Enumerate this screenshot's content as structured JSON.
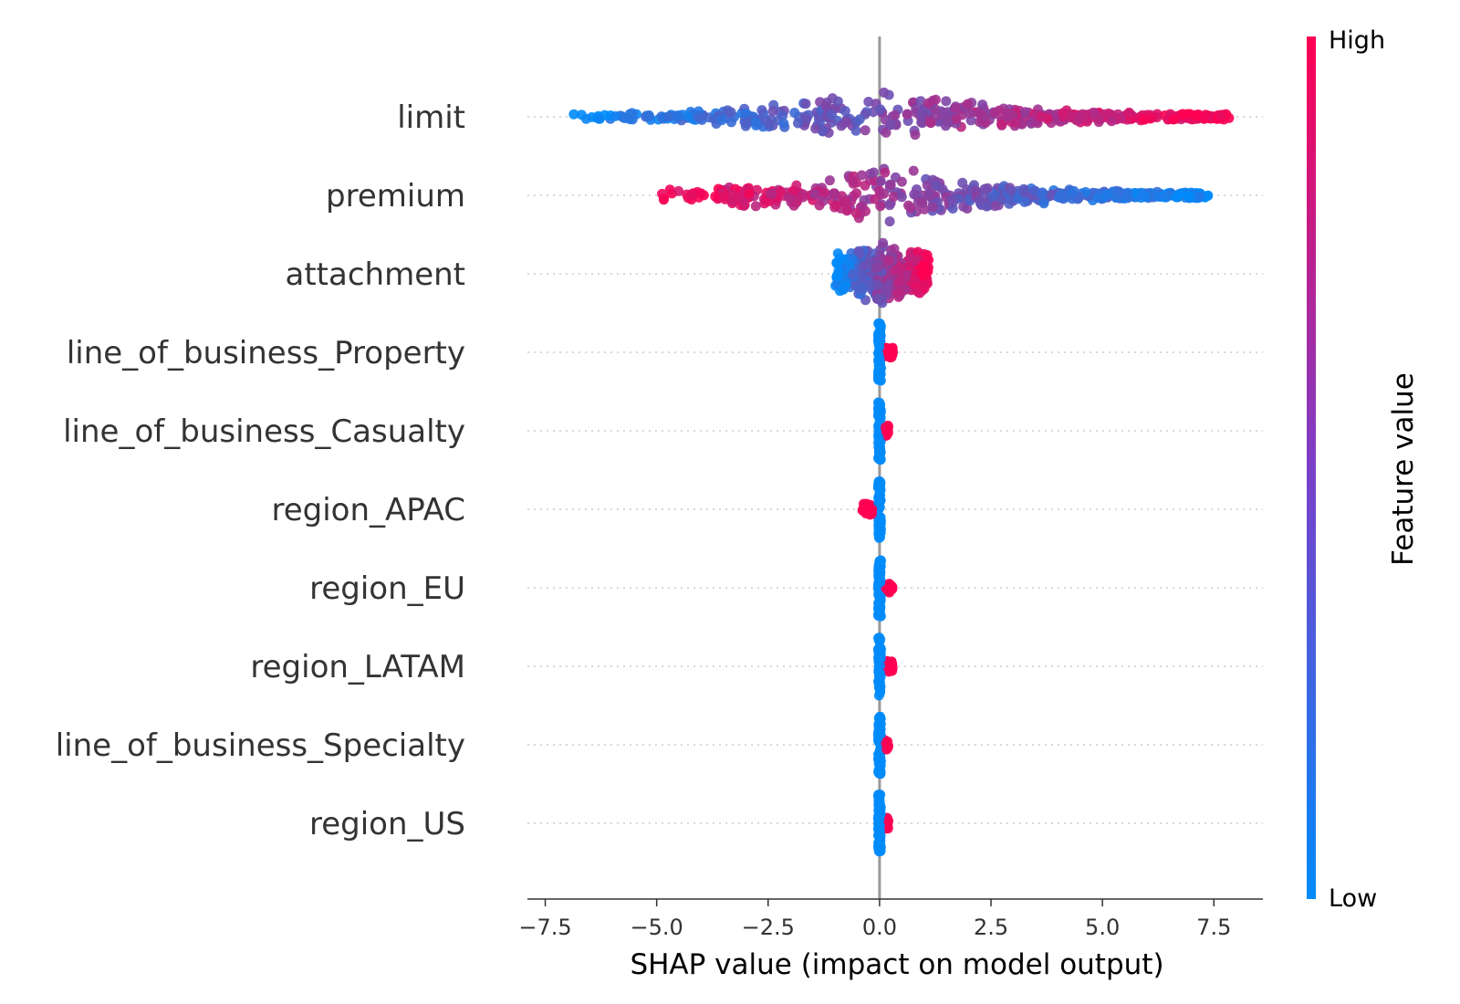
{
  "colors": {
    "low": "#008bfb",
    "high": "#ff0052",
    "zero_line": "#999999",
    "grid": "#cccccc"
  },
  "chart_data": {
    "type": "scatter",
    "subtype": "beeswarm",
    "title": "",
    "xlabel": "SHAP value (impact on model output)",
    "ylabel": "",
    "xlim": [
      -7.9,
      8.6
    ],
    "xticks": [
      {
        "value": -7.5,
        "label": "−7.5"
      },
      {
        "value": -5.0,
        "label": "−5.0"
      },
      {
        "value": -2.5,
        "label": "−2.5"
      },
      {
        "value": 0.0,
        "label": "0.0"
      },
      {
        "value": 2.5,
        "label": "2.5"
      },
      {
        "value": 5.0,
        "label": "5.0"
      },
      {
        "value": 7.5,
        "label": "7.5"
      }
    ],
    "colorbar": {
      "title": "Feature value",
      "high_label": "High",
      "low_label": "Low"
    },
    "features": [
      {
        "name": "limit",
        "min": -7.0,
        "max": 7.9,
        "direction": "positive"
      },
      {
        "name": "premium",
        "min": -5.0,
        "max": 7.4,
        "direction": "negative"
      },
      {
        "name": "attachment",
        "min": -1.0,
        "max": 1.1,
        "direction": "positive"
      },
      {
        "name": "line_of_business_Property",
        "min": -0.2,
        "max": 0.3,
        "direction": "positive"
      },
      {
        "name": "line_of_business_Casualty",
        "min": -0.2,
        "max": 0.2,
        "direction": "positive"
      },
      {
        "name": "region_APAC",
        "min": -0.4,
        "max": 0.2,
        "direction": "negative"
      },
      {
        "name": "region_EU",
        "min": -0.3,
        "max": 0.3,
        "direction": "positive"
      },
      {
        "name": "region_LATAM",
        "min": -0.3,
        "max": 0.3,
        "direction": "positive"
      },
      {
        "name": "line_of_business_Specialty",
        "min": -0.2,
        "max": 0.2,
        "direction": "positive"
      },
      {
        "name": "region_US",
        "min": -0.2,
        "max": 0.2,
        "direction": "positive"
      }
    ]
  }
}
